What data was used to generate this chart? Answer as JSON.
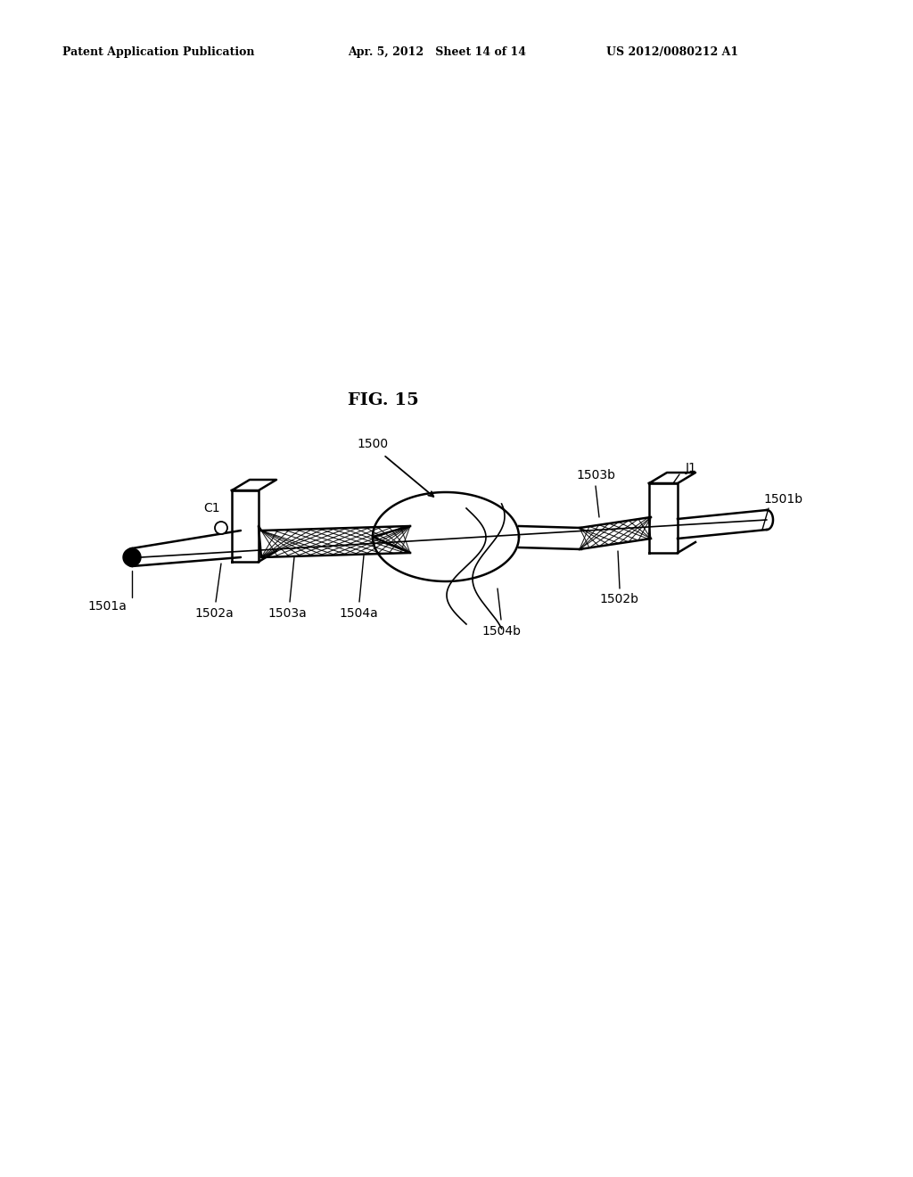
{
  "bg_color": "#ffffff",
  "line_color": "#000000",
  "header_left": "Patent Application Publication",
  "header_center": "Apr. 5, 2012   Sheet 14 of 14",
  "header_right": "US 2012/0080212 A1",
  "fig_label": "FIG. 15"
}
